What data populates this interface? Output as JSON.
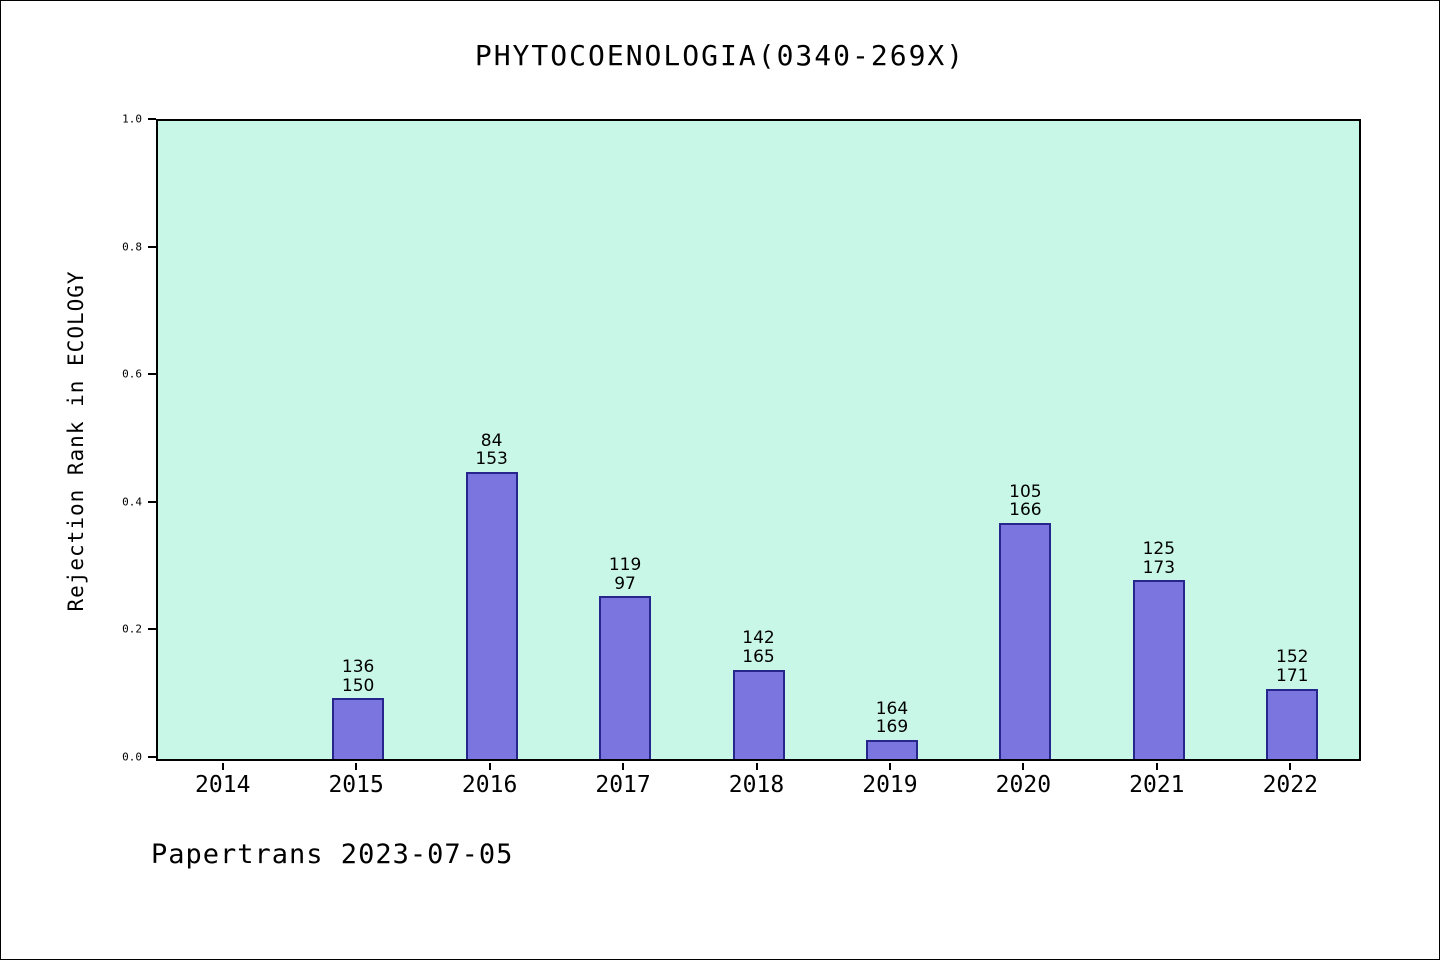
{
  "header": {
    "title": "PHYTOCOENOLOGIA(0340-269X)"
  },
  "footer": {
    "text": "Papertrans 2023-07-05"
  },
  "chart_data": {
    "type": "bar",
    "title": "PHYTOCOENOLOGIA(0340-269X)",
    "xlabel": "",
    "ylabel": "Rejection Rank in ECOLOGY",
    "categories": [
      "2014",
      "2015",
      "2016",
      "2017",
      "2018",
      "2019",
      "2020",
      "2021",
      "2022"
    ],
    "values": [
      0,
      0.095,
      0.45,
      0.255,
      0.14,
      0.03,
      0.37,
      0.28,
      0.11
    ],
    "bar_labels": [
      [],
      [
        "136",
        "150"
      ],
      [
        "84",
        "153"
      ],
      [
        "119",
        "97"
      ],
      [
        "142",
        "165"
      ],
      [
        "164",
        "169"
      ],
      [
        "105",
        "166"
      ],
      [
        "125",
        "173"
      ],
      [
        "152",
        "171"
      ]
    ],
    "ylim": [
      0,
      1.0
    ],
    "yticks": [
      0.0,
      0.2,
      0.4,
      0.6,
      0.8,
      1.0
    ],
    "grid": false,
    "legend_position": "none",
    "annotation": "Papertrans 2023-07-05",
    "colors": {
      "bar_fill": "#7b76df",
      "bar_edge": "#26268c",
      "plot_bg": "#c9f7e7"
    }
  }
}
